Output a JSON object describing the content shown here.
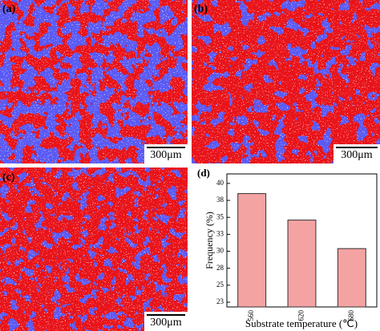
{
  "panels": [
    {
      "label": "(a)",
      "scale_bar": "300μm"
    },
    {
      "label": "(b)",
      "scale_bar": "300μm"
    },
    {
      "label": "(c)",
      "scale_bar": "300μm"
    }
  ],
  "chart_data": {
    "type": "bar",
    "label": "(d)",
    "x_label": "Substrate temperature (℃)",
    "y_label": "Frequency (%)",
    "categories": [
      "560",
      "620",
      "680"
    ],
    "values": [
      38.5,
      34.6,
      30.4
    ],
    "color": "#f4a3a3",
    "ylim": [
      21.8,
      41.4
    ],
    "yticks": [
      {
        "value": 22.5,
        "label": "23"
      },
      25,
      {
        "value": 27.5,
        "label": "28"
      },
      30,
      {
        "value": 32.5,
        "label": "33"
      },
      35,
      {
        "value": 37.5,
        "label": "38"
      },
      40
    ]
  }
}
